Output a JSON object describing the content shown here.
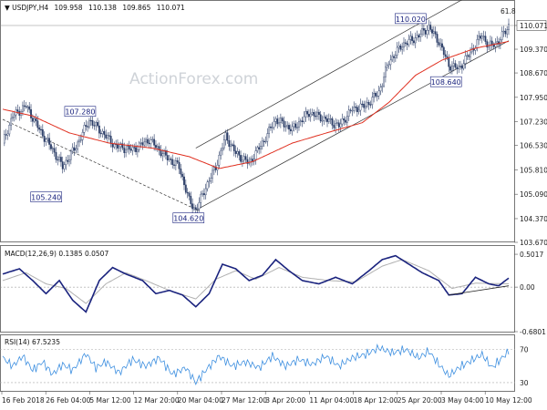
{
  "chart_data": [
    {
      "type": "candlestick",
      "symbol_header": "USDJPY,H4",
      "ohlc_header": {
        "open": "109.958",
        "high": "110.138",
        "low": "109.865",
        "close": "110.071"
      },
      "watermark": "ActionForex.com",
      "fib_label": "61.8",
      "ylim": [
        103.67,
        110.5
      ],
      "y_ticks": [
        "110.071",
        "109.370",
        "108.670",
        "107.950",
        "107.230",
        "106.530",
        "105.810",
        "105.090",
        "104.370",
        "103.670"
      ],
      "current_price": "110.071",
      "x_tick_labels": [
        "16 Feb 2018",
        "26 Feb 04:00",
        "5 Mar 12:00",
        "12 Mar 20:00",
        "20 Mar 04:00",
        "27 Mar 12:00",
        "3 Apr 20:00",
        "11 Apr 04:00",
        "18 Apr 12:00",
        "25 Apr 20:00",
        "3 May 04:00",
        "10 May 12:00"
      ],
      "annotations": [
        {
          "label": "107.280",
          "price": 107.28
        },
        {
          "label": "105.240",
          "price": 105.24
        },
        {
          "label": "104.620",
          "price": 104.62
        },
        {
          "label": "110.020",
          "price": 110.02
        },
        {
          "label": "108.640",
          "price": 108.64
        }
      ],
      "price_path": [
        [
          0,
          106.6
        ],
        [
          6,
          107.4
        ],
        [
          14,
          107.7
        ],
        [
          22,
          107.0
        ],
        [
          30,
          106.4
        ],
        [
          36,
          105.9
        ],
        [
          44,
          106.5
        ],
        [
          52,
          107.28
        ],
        [
          60,
          106.9
        ],
        [
          68,
          106.5
        ],
        [
          78,
          106.4
        ],
        [
          88,
          106.7
        ],
        [
          98,
          106.2
        ],
        [
          106,
          105.9
        ],
        [
          112,
          104.9
        ],
        [
          116,
          104.62
        ],
        [
          122,
          105.3
        ],
        [
          128,
          105.9
        ],
        [
          134,
          106.8
        ],
        [
          140,
          106.3
        ],
        [
          148,
          106.0
        ],
        [
          156,
          106.6
        ],
        [
          164,
          107.3
        ],
        [
          174,
          107.0
        ],
        [
          184,
          107.5
        ],
        [
          194,
          107.3
        ],
        [
          202,
          107.1
        ],
        [
          210,
          107.6
        ],
        [
          218,
          107.7
        ],
        [
          226,
          108.1
        ],
        [
          232,
          109.0
        ],
        [
          240,
          109.5
        ],
        [
          248,
          109.7
        ],
        [
          256,
          110.02
        ],
        [
          262,
          109.6
        ],
        [
          268,
          108.9
        ],
        [
          274,
          108.8
        ],
        [
          280,
          109.2
        ],
        [
          288,
          109.8
        ],
        [
          292,
          109.45
        ],
        [
          298,
          109.6
        ],
        [
          304,
          110.071
        ]
      ],
      "ma_path": [
        [
          0,
          107.6
        ],
        [
          18,
          107.4
        ],
        [
          40,
          106.9
        ],
        [
          64,
          106.6
        ],
        [
          90,
          106.45
        ],
        [
          112,
          106.2
        ],
        [
          130,
          105.85
        ],
        [
          150,
          106.05
        ],
        [
          174,
          106.6
        ],
        [
          198,
          106.95
        ],
        [
          216,
          107.2
        ],
        [
          232,
          107.8
        ],
        [
          248,
          108.6
        ],
        [
          264,
          109.05
        ],
        [
          284,
          109.4
        ],
        [
          304,
          109.6
        ]
      ]
    },
    {
      "type": "line",
      "title": "MACD(12,26,9) 0.1385 0.0507",
      "ylim": [
        -0.68,
        0.6
      ],
      "y_ticks": [
        "0.5017",
        "0.00",
        "-0.6801"
      ],
      "macd_path": [
        [
          0,
          0.2
        ],
        [
          10,
          0.28
        ],
        [
          18,
          0.1
        ],
        [
          26,
          -0.1
        ],
        [
          34,
          0.1
        ],
        [
          42,
          -0.2
        ],
        [
          50,
          -0.38
        ],
        [
          58,
          0.1
        ],
        [
          66,
          0.3
        ],
        [
          74,
          0.2
        ],
        [
          84,
          0.1
        ],
        [
          92,
          -0.1
        ],
        [
          100,
          -0.05
        ],
        [
          108,
          -0.12
        ],
        [
          116,
          -0.3
        ],
        [
          124,
          -0.1
        ],
        [
          132,
          0.35
        ],
        [
          140,
          0.28
        ],
        [
          148,
          0.1
        ],
        [
          156,
          0.18
        ],
        [
          164,
          0.42
        ],
        [
          172,
          0.25
        ],
        [
          180,
          0.1
        ],
        [
          190,
          0.05
        ],
        [
          200,
          0.15
        ],
        [
          210,
          0.05
        ],
        [
          220,
          0.25
        ],
        [
          228,
          0.42
        ],
        [
          236,
          0.48
        ],
        [
          244,
          0.35
        ],
        [
          252,
          0.22
        ],
        [
          262,
          0.1
        ],
        [
          268,
          -0.12
        ],
        [
          276,
          -0.1
        ],
        [
          284,
          0.15
        ],
        [
          292,
          0.05
        ],
        [
          298,
          0.02
        ],
        [
          304,
          0.138
        ]
      ],
      "signal_path": [
        [
          0,
          0.1
        ],
        [
          14,
          0.22
        ],
        [
          26,
          0.05
        ],
        [
          38,
          -0.02
        ],
        [
          50,
          -0.25
        ],
        [
          62,
          0.05
        ],
        [
          74,
          0.22
        ],
        [
          86,
          0.1
        ],
        [
          100,
          -0.05
        ],
        [
          116,
          -0.18
        ],
        [
          128,
          0.12
        ],
        [
          140,
          0.25
        ],
        [
          152,
          0.12
        ],
        [
          166,
          0.3
        ],
        [
          180,
          0.15
        ],
        [
          196,
          0.1
        ],
        [
          212,
          0.08
        ],
        [
          228,
          0.32
        ],
        [
          240,
          0.42
        ],
        [
          256,
          0.25
        ],
        [
          270,
          -0.02
        ],
        [
          284,
          0.06
        ],
        [
          304,
          0.051
        ]
      ],
      "trendline": [
        [
          268,
          -0.12
        ],
        [
          304,
          0.02
        ]
      ]
    },
    {
      "type": "line",
      "title": "RSI(14) 67.5235",
      "ylim": [
        20,
        85
      ],
      "y_ticks": [
        "70",
        "30"
      ],
      "rsi_path": [
        [
          0,
          60
        ],
        [
          6,
          50
        ],
        [
          12,
          62
        ],
        [
          18,
          45
        ],
        [
          24,
          55
        ],
        [
          30,
          40
        ],
        [
          36,
          52
        ],
        [
          42,
          45
        ],
        [
          50,
          65
        ],
        [
          56,
          48
        ],
        [
          62,
          55
        ],
        [
          70,
          42
        ],
        [
          78,
          58
        ],
        [
          86,
          50
        ],
        [
          94,
          60
        ],
        [
          102,
          40
        ],
        [
          110,
          48
        ],
        [
          116,
          30
        ],
        [
          122,
          45
        ],
        [
          130,
          62
        ],
        [
          138,
          50
        ],
        [
          146,
          55
        ],
        [
          154,
          48
        ],
        [
          162,
          62
        ],
        [
          170,
          50
        ],
        [
          178,
          58
        ],
        [
          186,
          52
        ],
        [
          194,
          62
        ],
        [
          202,
          50
        ],
        [
          210,
          60
        ],
        [
          218,
          64
        ],
        [
          226,
          72
        ],
        [
          234,
          66
        ],
        [
          242,
          70
        ],
        [
          250,
          60
        ],
        [
          256,
          68
        ],
        [
          262,
          52
        ],
        [
          268,
          38
        ],
        [
          274,
          48
        ],
        [
          280,
          55
        ],
        [
          288,
          64
        ],
        [
          294,
          48
        ],
        [
          300,
          60
        ],
        [
          304,
          67.5
        ]
      ]
    }
  ]
}
